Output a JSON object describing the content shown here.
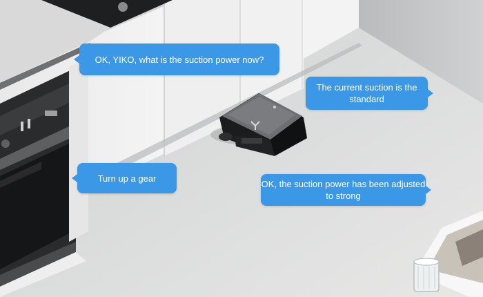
{
  "scene": {
    "description_icon": "robot-vacuum",
    "accent_color": "#3a98e6"
  },
  "conversation": [
    {
      "speaker": "user",
      "text": "OK, YIKO, what is the suction power now?"
    },
    {
      "speaker": "robot",
      "text": "The current suction is the standard"
    },
    {
      "speaker": "user",
      "text": "Turn up a gear"
    },
    {
      "speaker": "robot",
      "text": "OK, the suction power has been adjusted to strong"
    }
  ]
}
